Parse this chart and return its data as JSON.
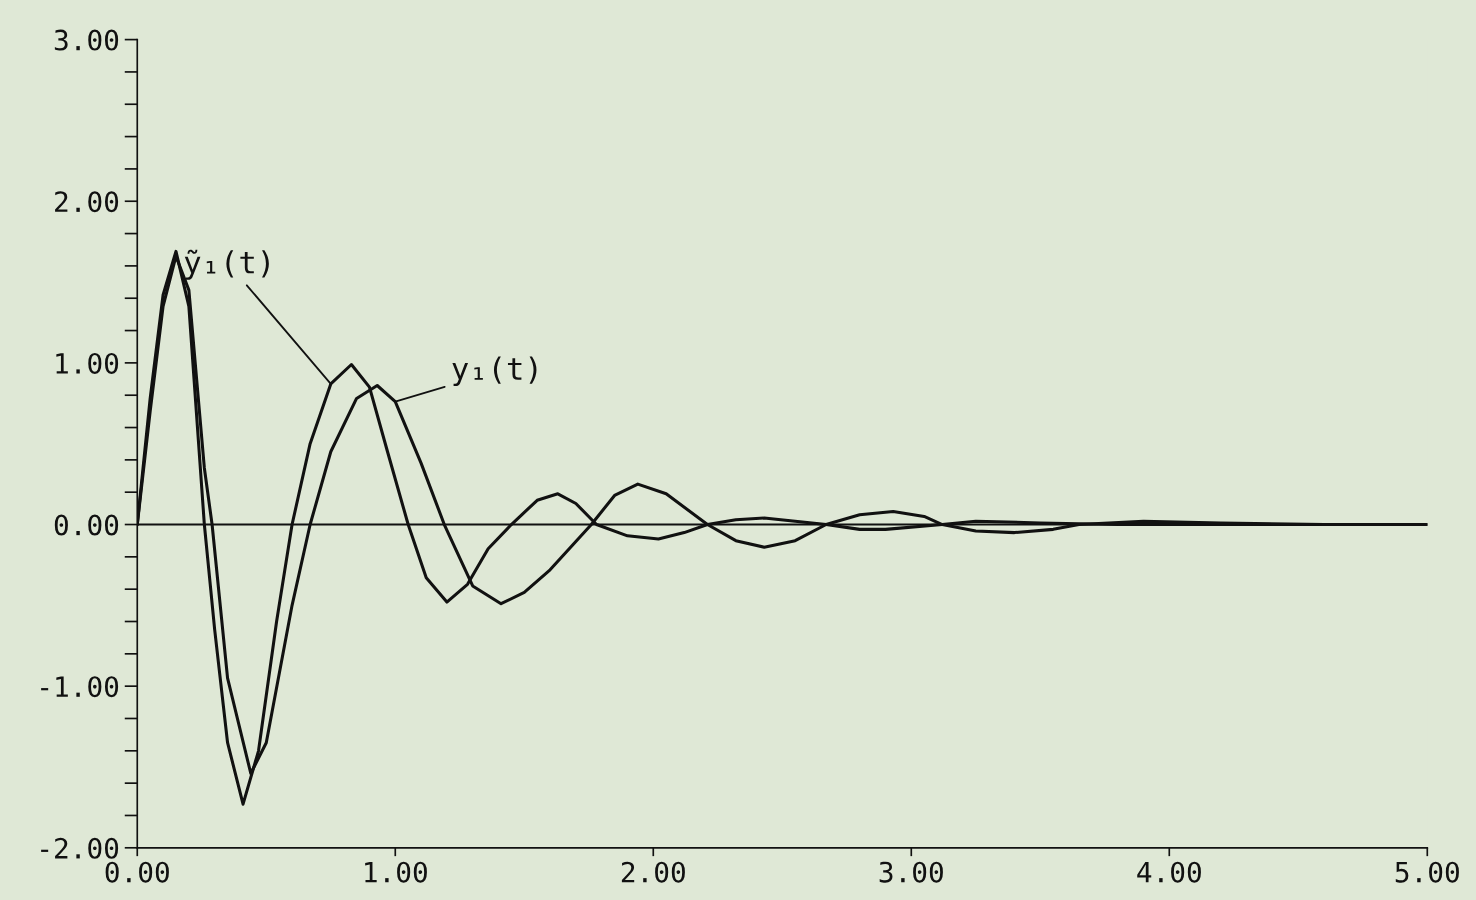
{
  "chart_data": {
    "type": "line",
    "xlim": [
      0,
      5
    ],
    "ylim": [
      -2,
      3
    ],
    "xticks": [
      {
        "value": 0,
        "label": "0.00"
      },
      {
        "value": 1,
        "label": "1.00"
      },
      {
        "value": 2,
        "label": "2.00"
      },
      {
        "value": 3,
        "label": "3.00"
      },
      {
        "value": 4,
        "label": "4.00"
      },
      {
        "value": 5,
        "label": "5.00"
      }
    ],
    "yticks": [
      {
        "value": -2,
        "label": "-2.00"
      },
      {
        "value": -1.8,
        "label": null
      },
      {
        "value": -1.6,
        "label": null
      },
      {
        "value": -1.4,
        "label": null
      },
      {
        "value": -1.2,
        "label": null
      },
      {
        "value": -1,
        "label": "-1.00"
      },
      {
        "value": -0.8,
        "label": null
      },
      {
        "value": -0.6,
        "label": null
      },
      {
        "value": -0.4,
        "label": null
      },
      {
        "value": -0.2,
        "label": null
      },
      {
        "value": 0,
        "label": "0.00"
      },
      {
        "value": 0.2,
        "label": null
      },
      {
        "value": 0.4,
        "label": null
      },
      {
        "value": 0.6,
        "label": null
      },
      {
        "value": 0.8,
        "label": null
      },
      {
        "value": 1,
        "label": "1.00"
      },
      {
        "value": 1.2,
        "label": null
      },
      {
        "value": 1.4,
        "label": null
      },
      {
        "value": 1.6,
        "label": null
      },
      {
        "value": 1.8,
        "label": null
      },
      {
        "value": 2,
        "label": "2.00"
      },
      {
        "value": 2.2,
        "label": null
      },
      {
        "value": 2.4,
        "label": null
      },
      {
        "value": 2.6,
        "label": null
      },
      {
        "value": 2.8,
        "label": null
      },
      {
        "value": 3,
        "label": "3.00"
      }
    ],
    "grid": false,
    "legend": false,
    "marker": "none",
    "line_style": "solid",
    "ref_lines": [
      {
        "axis": "y",
        "value": 0,
        "label": null,
        "color": "#111111"
      }
    ],
    "series": [
      {
        "name": "ỹ₁(t)",
        "color": "#111111",
        "x": [
          0,
          0.05,
          0.1,
          0.15,
          0.2,
          0.26,
          0.3,
          0.35,
          0.41,
          0.47,
          0.54,
          0.6,
          0.67,
          0.75,
          0.83,
          0.9,
          0.97,
          1.05,
          1.12,
          1.2,
          1.28,
          1.36,
          1.45,
          1.55,
          1.63,
          1.7,
          1.78,
          1.9,
          2.02,
          2.12,
          2.21,
          2.32,
          2.43,
          2.55,
          2.67,
          2.8,
          2.9,
          3.12,
          3.25,
          3.5,
          3.8,
          4.2,
          5.0
        ],
        "values": [
          0,
          0.78,
          1.42,
          1.69,
          1.35,
          0,
          -0.65,
          -1.35,
          -1.73,
          -1.4,
          -0.6,
          0,
          0.5,
          0.87,
          0.99,
          0.85,
          0.45,
          0,
          -0.33,
          -0.48,
          -0.37,
          -0.15,
          0,
          0.15,
          0.19,
          0.13,
          0,
          -0.07,
          -0.09,
          -0.05,
          0,
          0.03,
          0.04,
          0.02,
          0,
          -0.03,
          -0.03,
          0,
          0.02,
          0.01,
          0,
          0,
          0
        ]
      },
      {
        "name": "y₁(t)",
        "color": "#111111",
        "x": [
          0,
          0.05,
          0.1,
          0.15,
          0.2,
          0.26,
          0.29,
          0.35,
          0.44,
          0.5,
          0.6,
          0.67,
          0.75,
          0.85,
          0.93,
          1.0,
          1.1,
          1.19,
          1.3,
          1.41,
          1.5,
          1.6,
          1.76,
          1.85,
          1.94,
          2.05,
          2.21,
          2.32,
          2.43,
          2.55,
          2.67,
          2.8,
          2.93,
          3.05,
          3.12,
          3.25,
          3.4,
          3.55,
          3.65,
          3.9,
          4.2,
          4.6,
          5.0
        ],
        "values": [
          0,
          0.7,
          1.35,
          1.66,
          1.45,
          0.35,
          0,
          -0.95,
          -1.54,
          -1.35,
          -0.5,
          0,
          0.45,
          0.78,
          0.86,
          0.76,
          0.38,
          0,
          -0.38,
          -0.49,
          -0.42,
          -0.28,
          0,
          0.18,
          0.25,
          0.19,
          0,
          -0.1,
          -0.14,
          -0.1,
          0,
          0.06,
          0.08,
          0.05,
          0,
          -0.04,
          -0.05,
          -0.03,
          0,
          0.02,
          0.01,
          0,
          0
        ]
      }
    ]
  }
}
